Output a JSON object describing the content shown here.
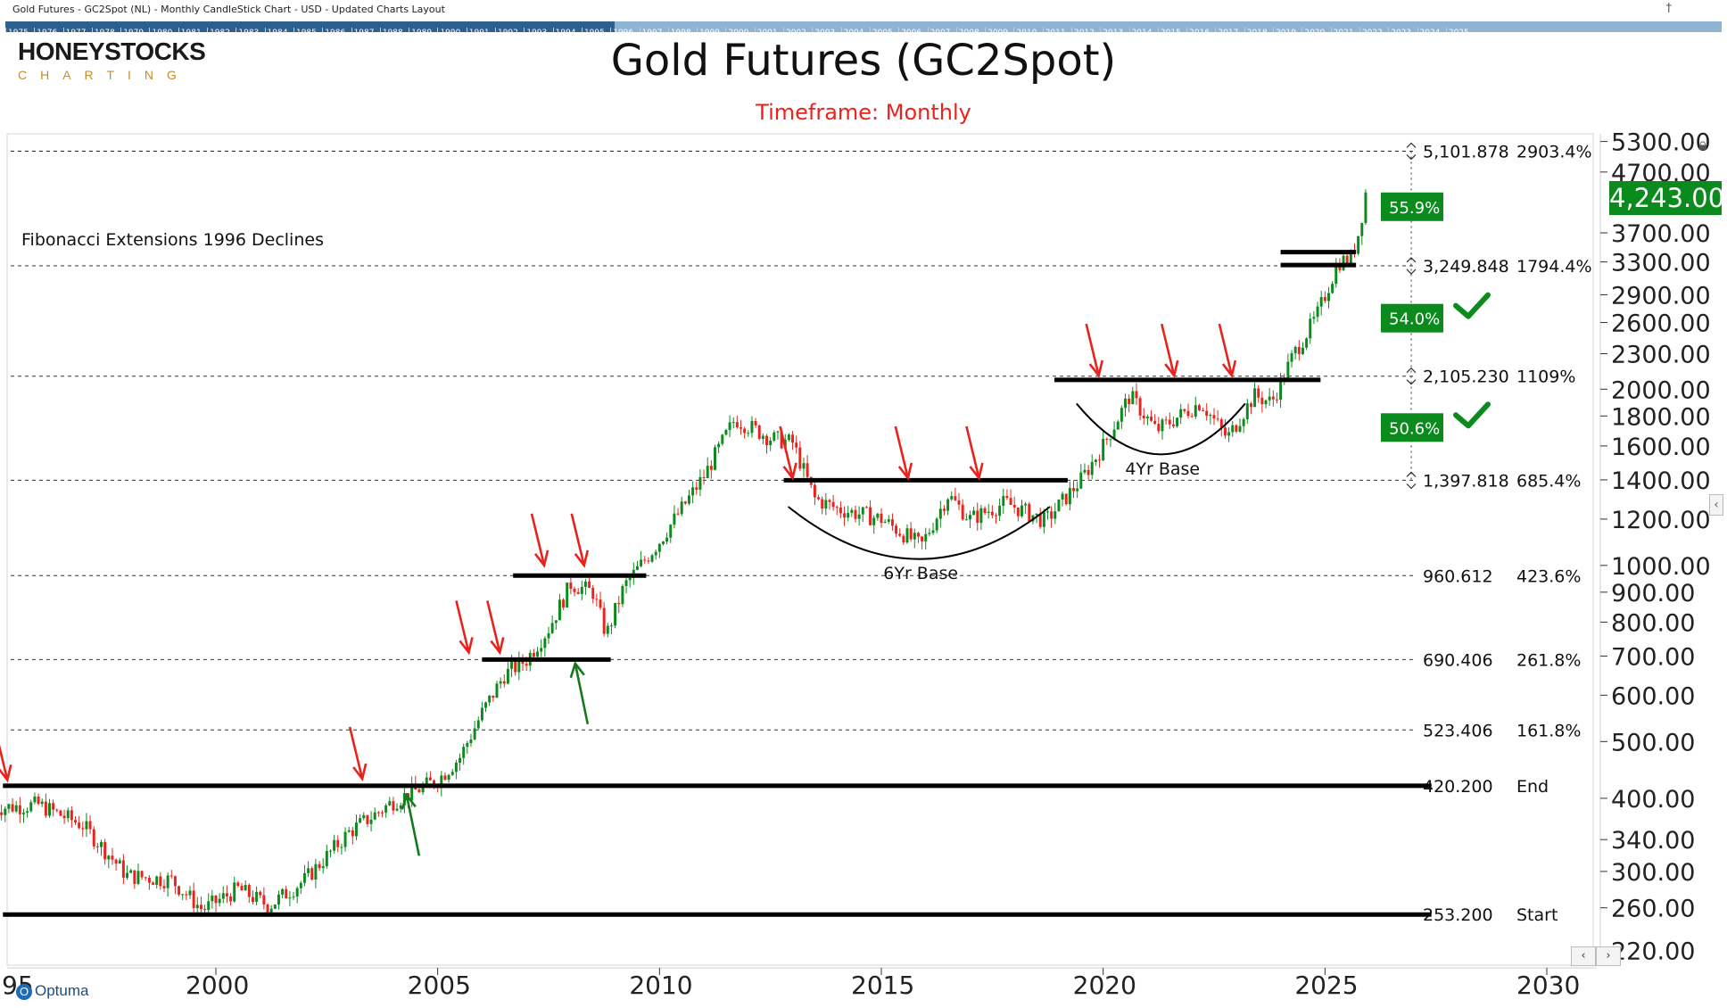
{
  "window": {
    "title": "Gold Futures - GC2Spot (NL) - Monthly CandleStick Chart - USD - Updated Charts Layout",
    "pin_icon": "pin-icon"
  },
  "timeline": {
    "years": [
      "1975",
      "1976",
      "1977",
      "1978",
      "1979",
      "1980",
      "1981",
      "1982",
      "1983",
      "1984",
      "1985",
      "1986",
      "1987",
      "1988",
      "1989",
      "1990",
      "1991",
      "1992",
      "1993",
      "1994",
      "1995",
      "1996",
      "1997",
      "1998",
      "1999",
      "2000",
      "2001",
      "2002",
      "2003",
      "2004",
      "2005",
      "2006",
      "2007",
      "2008",
      "2009",
      "2010",
      "2011",
      "2012",
      "2013",
      "2014",
      "2015",
      "2016",
      "2017",
      "2018",
      "2019",
      "2020",
      "2021",
      "2022",
      "2023",
      "2024",
      "2025"
    ]
  },
  "logo": {
    "main": "HONEYSTOCKS",
    "sub": "CHARTING"
  },
  "branding": {
    "optuma_label": "Optuma"
  },
  "colors": {
    "up": "#0b8a1d",
    "down": "#e8231e",
    "price_box": "#0b8a1d",
    "arrow_red": "#e8231e",
    "arrow_green": "#157a1f",
    "fib_line": "#333333"
  },
  "chart_data": {
    "type": "candlestick",
    "title": "Gold Futures (GC2Spot)",
    "subtitle": "Timeframe: Monthly",
    "y_scale": "log",
    "ylim": [
      230,
      5450
    ],
    "xlim": [
      1995.0,
      2031.5
    ],
    "x_ticks": [
      "95",
      "2000",
      "2005",
      "2010",
      "2015",
      "2020",
      "2025",
      "2030"
    ],
    "y_ticks": [
      "5300.00",
      "4700.00",
      "4243.00",
      "3700.00",
      "3300.00",
      "2900.00",
      "2600.00",
      "2300.00",
      "2000.00",
      "1800.00",
      "1600.00",
      "1400.00",
      "1200.00",
      "1000.00",
      "900.00",
      "800.00",
      "700.00",
      "600.00",
      "500.00",
      "400.00",
      "340.00",
      "300.00",
      "260.00",
      "220.00"
    ],
    "last_price": "4,243.00",
    "annotation_text": "Fibonacci Extensions 1996 Declines",
    "fib_levels": [
      {
        "price": 5101.878,
        "value_label": "5,101.878",
        "pct_label": "2903.4%"
      },
      {
        "price": 3249.848,
        "value_label": "3,249.848",
        "pct_label": "1794.4%"
      },
      {
        "price": 2105.23,
        "value_label": "2,105.230",
        "pct_label": "1109%"
      },
      {
        "price": 1397.818,
        "value_label": "1,397.818",
        "pct_label": "685.4%"
      },
      {
        "price": 960.612,
        "value_label": "960.612",
        "pct_label": "423.6%"
      },
      {
        "price": 690.406,
        "value_label": "690.406",
        "pct_label": "261.8%"
      },
      {
        "price": 523.406,
        "value_label": "523.406",
        "pct_label": "161.8%"
      },
      {
        "price": 420.2,
        "value_label": "420.200",
        "pct_label": "End"
      },
      {
        "price": 253.2,
        "value_label": "253.200",
        "pct_label": "Start"
      }
    ],
    "level_segments": [
      {
        "x1": 1995.2,
        "x2": 2027.4,
        "price": 420.2
      },
      {
        "x1": 1995.2,
        "x2": 2027.4,
        "price": 253.2
      },
      {
        "x1": 2006.0,
        "x2": 2008.9,
        "price": 690.4
      },
      {
        "x1": 2006.7,
        "x2": 2009.7,
        "price": 960.6
      },
      {
        "x1": 2012.8,
        "x2": 2019.2,
        "price": 1397.8
      },
      {
        "x1": 2018.9,
        "x2": 2024.9,
        "price": 2075
      },
      {
        "x1": 2024.0,
        "x2": 2025.7,
        "price": 3430
      },
      {
        "x1": 2024.0,
        "x2": 2025.7,
        "price": 3260
      }
    ],
    "pct_boxes": [
      {
        "label": "55.9%",
        "price": 4100,
        "check": false
      },
      {
        "label": "54.0%",
        "price": 2645,
        "check": true
      },
      {
        "label": "50.6%",
        "price": 1720,
        "check": true
      }
    ],
    "bases": [
      {
        "label": "6Yr Base",
        "x1": 2012.9,
        "x2": 2018.8,
        "price_top": 1260,
        "price_bottom": 1020
      },
      {
        "label": "4Yr Base",
        "x1": 2019.4,
        "x2": 2023.2,
        "price_top": 1890,
        "price_bottom": 1540
      }
    ],
    "arrows": [
      {
        "color": "red",
        "x": 1995.3,
        "price": 430
      },
      {
        "color": "red",
        "x": 2003.3,
        "price": 432
      },
      {
        "color": "red",
        "x": 2005.7,
        "price": 710
      },
      {
        "color": "red",
        "x": 2006.4,
        "price": 710
      },
      {
        "color": "red",
        "x": 2007.4,
        "price": 1000
      },
      {
        "color": "red",
        "x": 2008.3,
        "price": 1000
      },
      {
        "color": "red",
        "x": 2013.0,
        "price": 1410
      },
      {
        "color": "red",
        "x": 2015.6,
        "price": 1410
      },
      {
        "color": "red",
        "x": 2017.2,
        "price": 1410
      },
      {
        "color": "red",
        "x": 2019.9,
        "price": 2110
      },
      {
        "color": "red",
        "x": 2021.6,
        "price": 2110
      },
      {
        "color": "red",
        "x": 2022.9,
        "price": 2110
      },
      {
        "color": "green",
        "x": 2004.3,
        "price": 405
      },
      {
        "color": "green",
        "x": 2008.1,
        "price": 680
      }
    ],
    "series_anchors": [
      [
        1995.0,
        385
      ],
      [
        1996.0,
        390
      ],
      [
        1997.0,
        360
      ],
      [
        1998.0,
        295
      ],
      [
        1999.0,
        290
      ],
      [
        1999.7,
        258
      ],
      [
        2000.5,
        280
      ],
      [
        2001.2,
        262
      ],
      [
        2002.0,
        290
      ],
      [
        2003.0,
        350
      ],
      [
        2004.0,
        395
      ],
      [
        2005.0,
        430
      ],
      [
        2005.5,
        470
      ],
      [
        2006.0,
        560
      ],
      [
        2006.5,
        650
      ],
      [
        2007.0,
        690
      ],
      [
        2007.5,
        780
      ],
      [
        2008.0,
        930
      ],
      [
        2008.5,
        900
      ],
      [
        2008.8,
        760
      ],
      [
        2009.2,
        920
      ],
      [
        2010.0,
        1100
      ],
      [
        2011.0,
        1420
      ],
      [
        2011.7,
        1780
      ],
      [
        2012.5,
        1650
      ],
      [
        2013.0,
        1620
      ],
      [
        2013.5,
        1300
      ],
      [
        2014.0,
        1250
      ],
      [
        2015.0,
        1200
      ],
      [
        2015.9,
        1080
      ],
      [
        2016.5,
        1320
      ],
      [
        2017.0,
        1200
      ],
      [
        2017.8,
        1280
      ],
      [
        2018.7,
        1190
      ],
      [
        2019.5,
        1400
      ],
      [
        2020.0,
        1600
      ],
      [
        2020.6,
        1950
      ],
      [
        2021.2,
        1700
      ],
      [
        2022.2,
        1900
      ],
      [
        2022.8,
        1650
      ],
      [
        2023.4,
        1950
      ],
      [
        2023.8,
        1900
      ],
      [
        2024.3,
        2300
      ],
      [
        2024.8,
        2650
      ],
      [
        2025.3,
        3300
      ],
      [
        2025.6,
        3350
      ],
      [
        2025.8,
        3800
      ],
      [
        2025.9,
        4350
      ],
      [
        2026.0,
        4243
      ]
    ]
  }
}
